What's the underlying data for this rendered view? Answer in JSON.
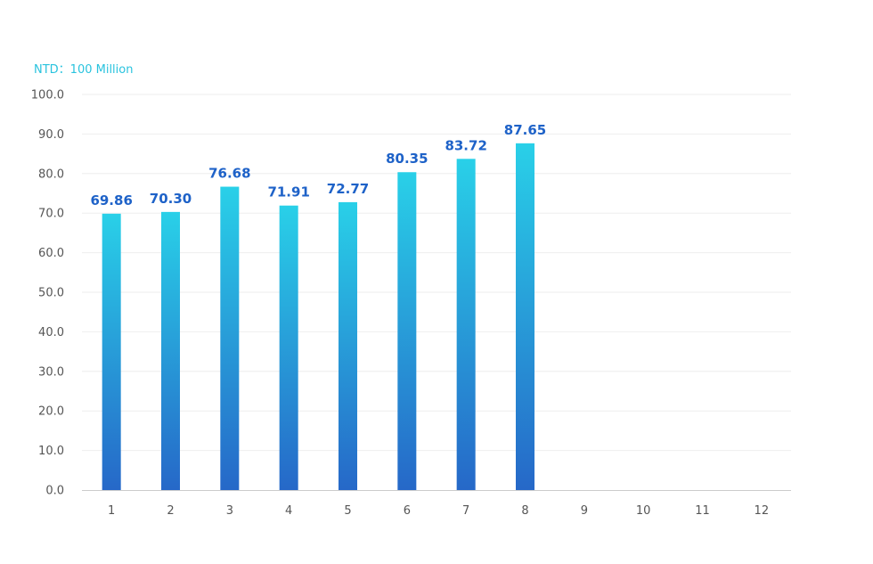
{
  "chart_data": {
    "type": "bar",
    "unit_label": "NTD：100 Million",
    "categories": [
      "1",
      "2",
      "3",
      "4",
      "5",
      "6",
      "7",
      "8",
      "9",
      "10",
      "11",
      "12"
    ],
    "values": [
      69.86,
      70.3,
      76.68,
      71.91,
      72.77,
      80.35,
      83.72,
      87.65,
      null,
      null,
      null,
      null
    ],
    "value_labels": [
      "69.86",
      "70.30",
      "76.68",
      "71.91",
      "72.77",
      "80.35",
      "83.72",
      "87.65",
      "",
      "",
      "",
      ""
    ],
    "y_ticks": [
      "0.0",
      "10.0",
      "20.0",
      "30.0",
      "40.0",
      "50.0",
      "60.0",
      "70.0",
      "80.0",
      "90.0",
      "100.0"
    ],
    "ylim": [
      0,
      100
    ],
    "grid": true,
    "legend": "none",
    "colors": {
      "bar_top": "#29d0e8",
      "bar_bottom": "#2668c8",
      "value_label": "#1e62c8",
      "unit_label": "#29c3de",
      "grid": "#eeeeee",
      "axis": "#cccccc",
      "tick_text": "#555555"
    }
  }
}
